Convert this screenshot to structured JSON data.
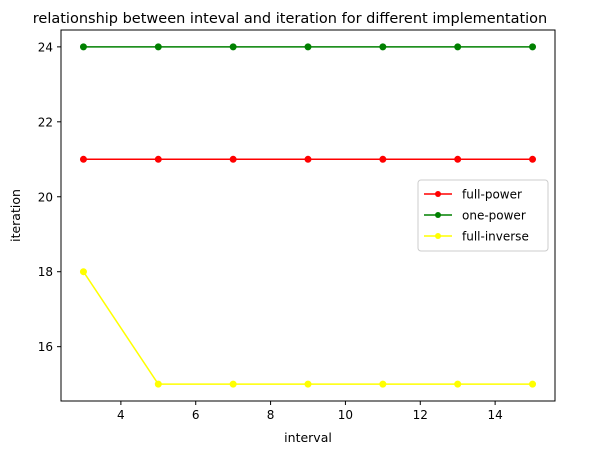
{
  "chart_data": {
    "type": "line",
    "title": "relationship between inteval and iteration for different implementation",
    "xlabel": "interval",
    "ylabel": "iteration",
    "x": [
      3,
      5,
      7,
      9,
      11,
      13,
      15
    ],
    "xlim": [
      2.4,
      15.6
    ],
    "ylim": [
      14.55,
      24.45
    ],
    "xticks": [
      4,
      6,
      8,
      10,
      12,
      14
    ],
    "yticks": [
      16,
      18,
      20,
      22,
      24
    ],
    "grid": false,
    "legend_position": "center-right",
    "series": [
      {
        "name": "full-power",
        "color": "#ff0000",
        "marker": "circle",
        "values": [
          21,
          21,
          21,
          21,
          21,
          21,
          21
        ]
      },
      {
        "name": "one-power",
        "color": "#008000",
        "marker": "circle",
        "values": [
          24,
          24,
          24,
          24,
          24,
          24,
          24
        ]
      },
      {
        "name": "full-inverse",
        "color": "#ffff00",
        "marker": "circle",
        "values": [
          18,
          15,
          15,
          15,
          15,
          15,
          15
        ]
      }
    ]
  }
}
